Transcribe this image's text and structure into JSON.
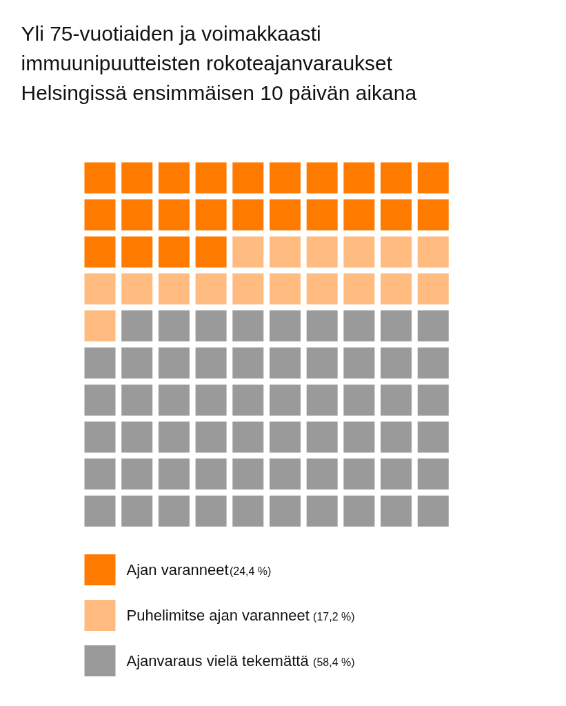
{
  "chart_data": {
    "type": "other",
    "title": "Yli 75-vuotiaiden ja voimakkaasti\nimmuunipuutteisten rokoteajanvaraukset\nHelsingissä ensimmäisen 10 päivän aikana",
    "categories": [
      "Ajan varanneet",
      "Puhelimitse ajan varanneet",
      "Ajanvaraus vielä tekemättä"
    ],
    "values": [
      24.4,
      17.2,
      58.4
    ],
    "value_labels": [
      "(24,4 %)",
      "(17,2 %)",
      "(58,4 %)"
    ],
    "colors": [
      "#ff7b00",
      "#ffbb80",
      "#9a9a9a"
    ]
  }
}
